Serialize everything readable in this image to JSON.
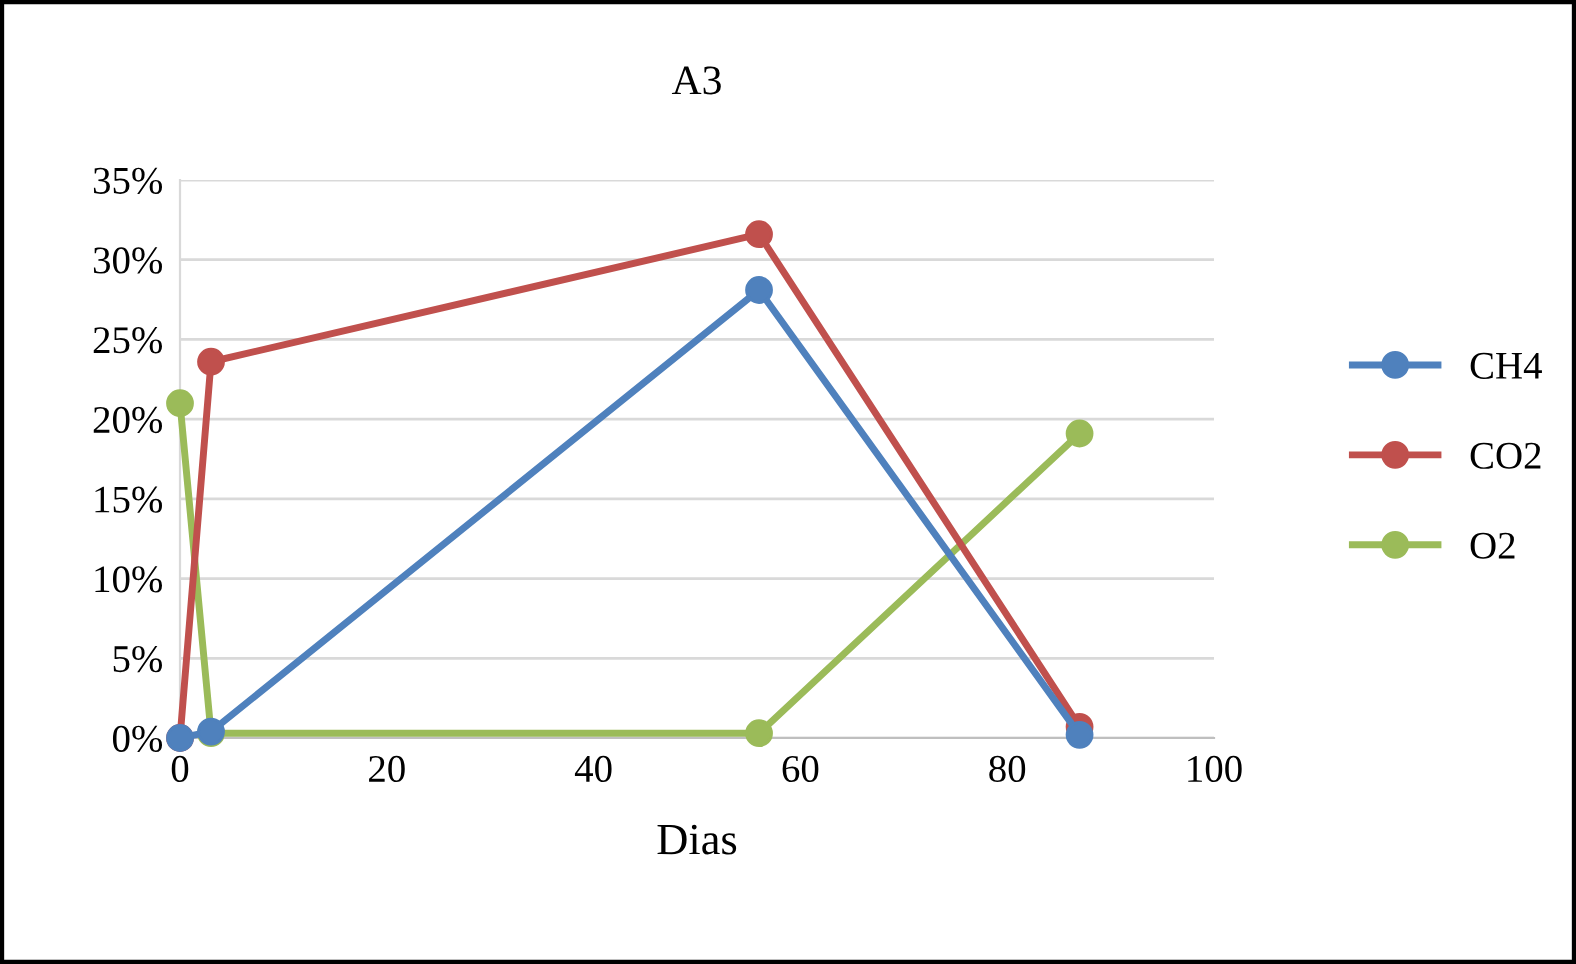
{
  "chart_data": {
    "type": "line",
    "title": "A3",
    "xlabel": "Dias",
    "x": [
      0,
      3,
      56,
      87
    ],
    "series": [
      {
        "name": "CH4",
        "color": "#4f81bd",
        "values": [
          0,
          0.4,
          28.1,
          0.2
        ]
      },
      {
        "name": "CO2",
        "color": "#c0504d",
        "values": [
          0,
          23.6,
          31.6,
          0.7
        ]
      },
      {
        "name": "O2",
        "color": "#9bbb59",
        "values": [
          21,
          0.3,
          0.3,
          19.1
        ]
      }
    ],
    "xlim": [
      0,
      100
    ],
    "xticks": [
      0,
      20,
      40,
      60,
      80,
      100
    ],
    "ylim": [
      0,
      35
    ],
    "yticks": [
      {
        "value": 0,
        "label": "0%"
      },
      {
        "value": 5,
        "label": "5%"
      },
      {
        "value": 10,
        "label": "10%"
      },
      {
        "value": 15,
        "label": "15%"
      },
      {
        "value": 20,
        "label": "20%"
      },
      {
        "value": 25,
        "label": "25%"
      },
      {
        "value": 30,
        "label": "30%"
      },
      {
        "value": 35,
        "label": "35%"
      }
    ],
    "grid": "y",
    "legend": "right",
    "marker": "circle",
    "line_style": "solid"
  }
}
